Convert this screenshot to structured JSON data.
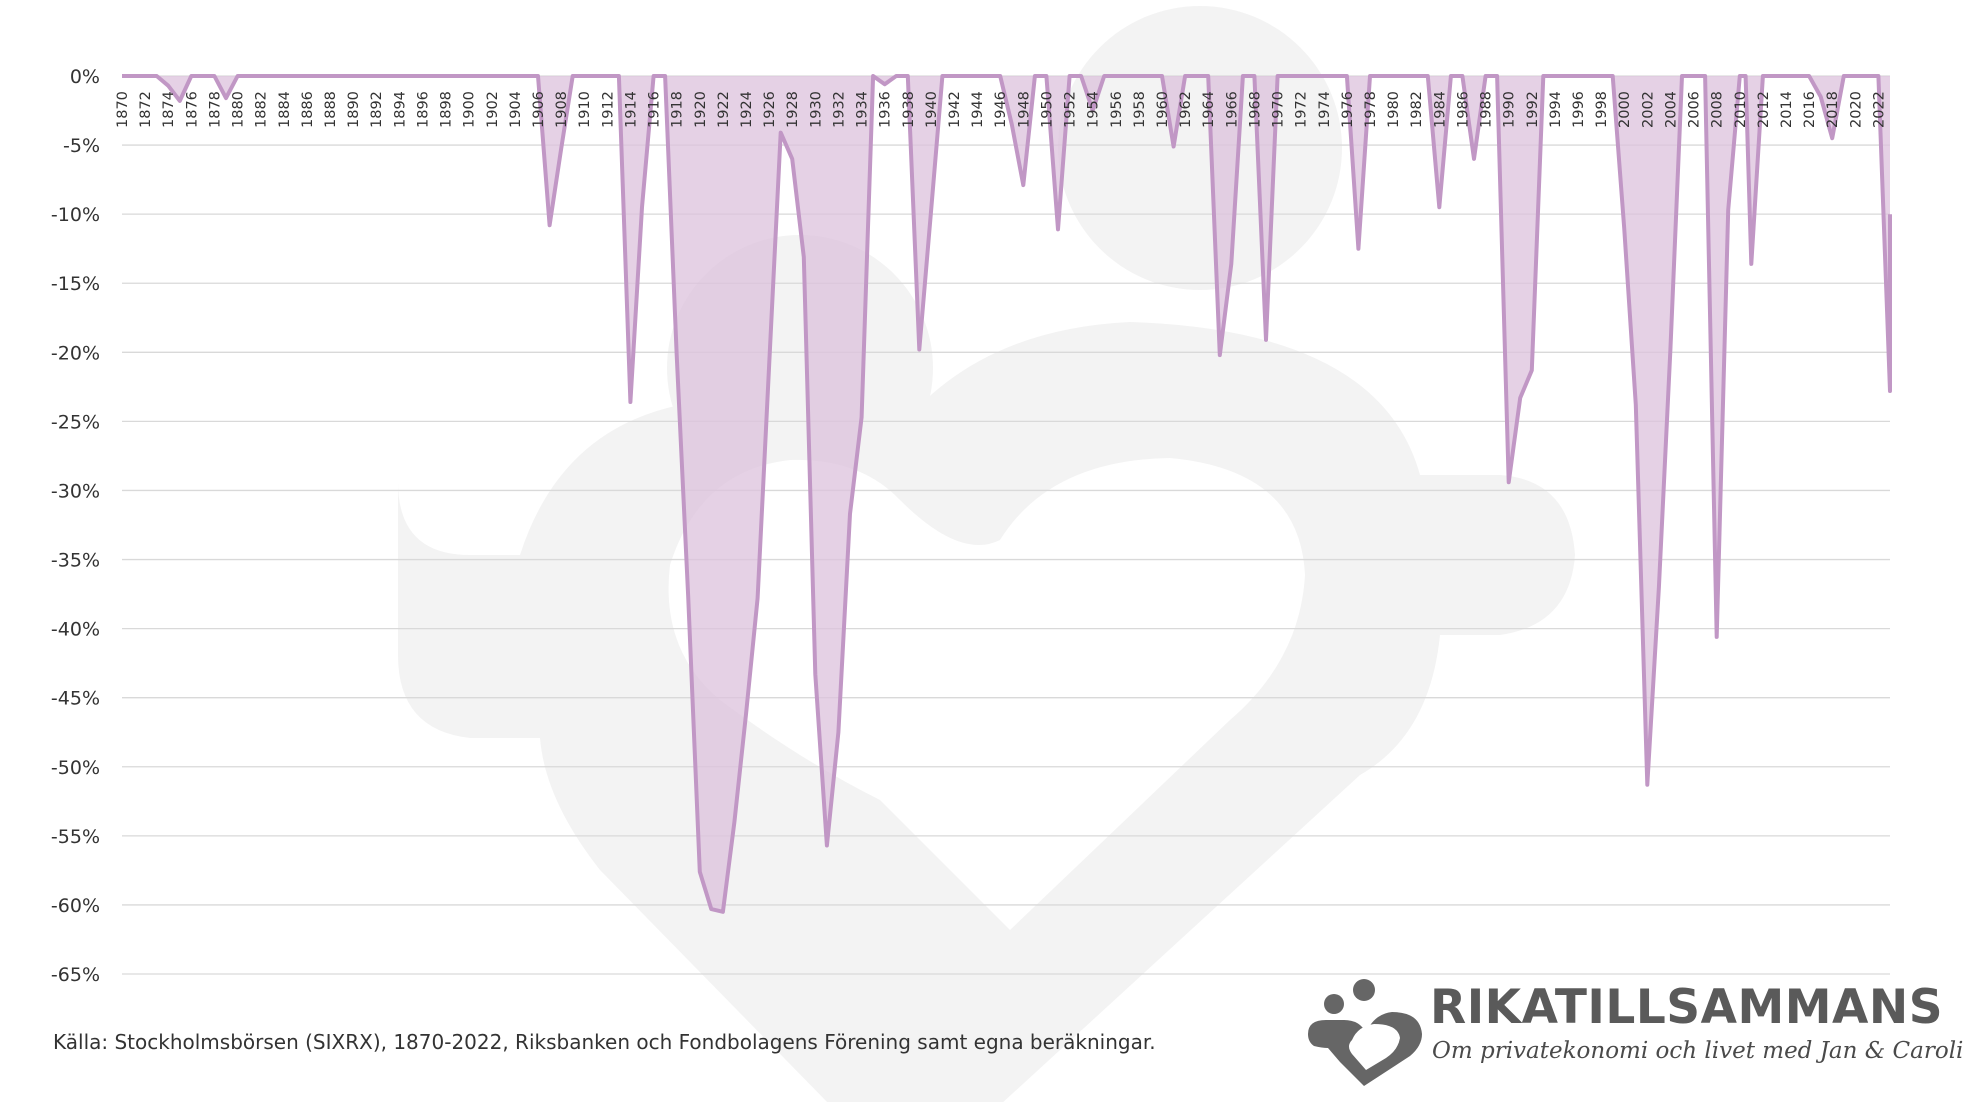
{
  "source_note": "Källa: Stockholmsbörsen (SIXRX), 1870-2022, Riksbanken och Fondbolagens Förening samt egna beräkningar.",
  "brand": {
    "name": "RIKATILLSAMMANS",
    "tagline": "Om privatekonomi och livet med Jan & Caroline",
    "logo_icon": "family-heart-icon",
    "watermark_icon": "heart-family-watermark-icon"
  },
  "colors": {
    "series_line": "#c197c5",
    "series_fill": "#dcc2dc",
    "grid": "#d9d9d9",
    "watermark": "#f3f3f3",
    "logo": "#666666"
  },
  "chart_data": {
    "type": "area",
    "title": "",
    "xlabel": "",
    "ylabel": "",
    "ylim": [
      -65,
      0
    ],
    "yticks": [
      0,
      -5,
      -10,
      -15,
      -20,
      -25,
      -30,
      -35,
      -40,
      -45,
      -50,
      -55,
      -60,
      -65
    ],
    "ytick_labels": [
      "0%",
      "-5%",
      "-10%",
      "-15%",
      "-20%",
      "-25%",
      "-30%",
      "-35%",
      "-40%",
      "-45%",
      "-50%",
      "-55%",
      "-60%",
      "-65%"
    ],
    "xlim": [
      1870,
      2023
    ],
    "xticks": [
      1870,
      1872,
      1874,
      1876,
      1878,
      1880,
      1882,
      1884,
      1886,
      1888,
      1890,
      1892,
      1894,
      1896,
      1898,
      1900,
      1902,
      1904,
      1906,
      1908,
      1910,
      1912,
      1914,
      1916,
      1918,
      1920,
      1922,
      1924,
      1926,
      1928,
      1930,
      1932,
      1934,
      1936,
      1938,
      1940,
      1942,
      1944,
      1946,
      1948,
      1950,
      1952,
      1954,
      1956,
      1958,
      1960,
      1962,
      1964,
      1966,
      1968,
      1970,
      1972,
      1974,
      1976,
      1978,
      1980,
      1982,
      1984,
      1986,
      1988,
      1990,
      1992,
      1994,
      1996,
      1998,
      2000,
      2002,
      2004,
      2006,
      2008,
      2010,
      2012,
      2014,
      2016,
      2018,
      2020,
      2022
    ],
    "grid": true,
    "legend": "none",
    "series": [
      {
        "points": [
          [
            1870,
            0
          ],
          [
            1873,
            0
          ],
          [
            1874,
            -0.7
          ],
          [
            1875,
            -1.8
          ],
          [
            1876,
            0
          ],
          [
            1878,
            0
          ],
          [
            1879,
            -1.6
          ],
          [
            1880,
            0
          ],
          [
            1906,
            0
          ],
          [
            1907,
            -10.8
          ],
          [
            1908,
            -5.3
          ],
          [
            1909,
            0
          ],
          [
            1913,
            0
          ],
          [
            1914,
            -23.6
          ],
          [
            1915,
            -9.5
          ],
          [
            1916,
            0
          ],
          [
            1917,
            0
          ],
          [
            1918,
            -20.2
          ],
          [
            1919,
            -37.7
          ],
          [
            1920,
            -57.6
          ],
          [
            1921,
            -60.3
          ],
          [
            1922,
            -60.5
          ],
          [
            1923,
            -54
          ],
          [
            1924,
            -46.2
          ],
          [
            1925,
            -37.8
          ],
          [
            1926,
            -21
          ],
          [
            1927,
            -4.1
          ],
          [
            1928,
            -6
          ],
          [
            1929,
            -13.1
          ],
          [
            1930,
            -43.3
          ],
          [
            1931,
            -55.7
          ],
          [
            1932,
            -47.5
          ],
          [
            1933,
            -31.7
          ],
          [
            1934,
            -24.7
          ],
          [
            1935,
            0
          ],
          [
            1936,
            -0.6
          ],
          [
            1937,
            0
          ],
          [
            1938,
            0
          ],
          [
            1939,
            -19.8
          ],
          [
            1940,
            -9.9
          ],
          [
            1941,
            0
          ],
          [
            1946,
            0
          ],
          [
            1947,
            -3.5
          ],
          [
            1948,
            -7.9
          ],
          [
            1949,
            0
          ],
          [
            1950,
            0
          ],
          [
            1951,
            -11.1
          ],
          [
            1952,
            0
          ],
          [
            1953,
            0
          ],
          [
            1954,
            -2.5
          ],
          [
            1955,
            0
          ],
          [
            1960,
            0
          ],
          [
            1961,
            -5.1
          ],
          [
            1962,
            0
          ],
          [
            1964,
            0
          ],
          [
            1965,
            -20.2
          ],
          [
            1966,
            -13.6
          ],
          [
            1967,
            0
          ],
          [
            1968,
            0
          ],
          [
            1969,
            -19.1
          ],
          [
            1970,
            0
          ],
          [
            1976,
            0
          ],
          [
            1977,
            -12.5
          ],
          [
            1978,
            0
          ],
          [
            1983,
            0
          ],
          [
            1984,
            -9.5
          ],
          [
            1985,
            0
          ],
          [
            1986,
            0
          ],
          [
            1987,
            -6
          ],
          [
            1988,
            0
          ],
          [
            1989,
            0
          ],
          [
            1990,
            -29.4
          ],
          [
            1991,
            -23.3
          ],
          [
            1992,
            -21.3
          ],
          [
            1993,
            0
          ],
          [
            1999,
            0
          ],
          [
            2000,
            -11
          ],
          [
            2001,
            -23.8
          ],
          [
            2002,
            -51.3
          ],
          [
            2003,
            -37
          ],
          [
            2004,
            -19.8
          ],
          [
            2005,
            0
          ],
          [
            2006,
            0
          ],
          [
            2007,
            0
          ],
          [
            2008,
            -40.6
          ],
          [
            2009,
            -9.7
          ],
          [
            2010,
            0
          ],
          [
            2010.5,
            0
          ],
          [
            2011,
            -13.6
          ],
          [
            2012,
            0
          ],
          [
            2016,
            0
          ],
          [
            2017,
            -1.5
          ],
          [
            2018,
            -4.5
          ],
          [
            2019,
            0
          ],
          [
            2022,
            0
          ],
          [
            2023,
            -22.8
          ],
          [
            2024,
            -10
          ]
        ]
      }
    ]
  }
}
